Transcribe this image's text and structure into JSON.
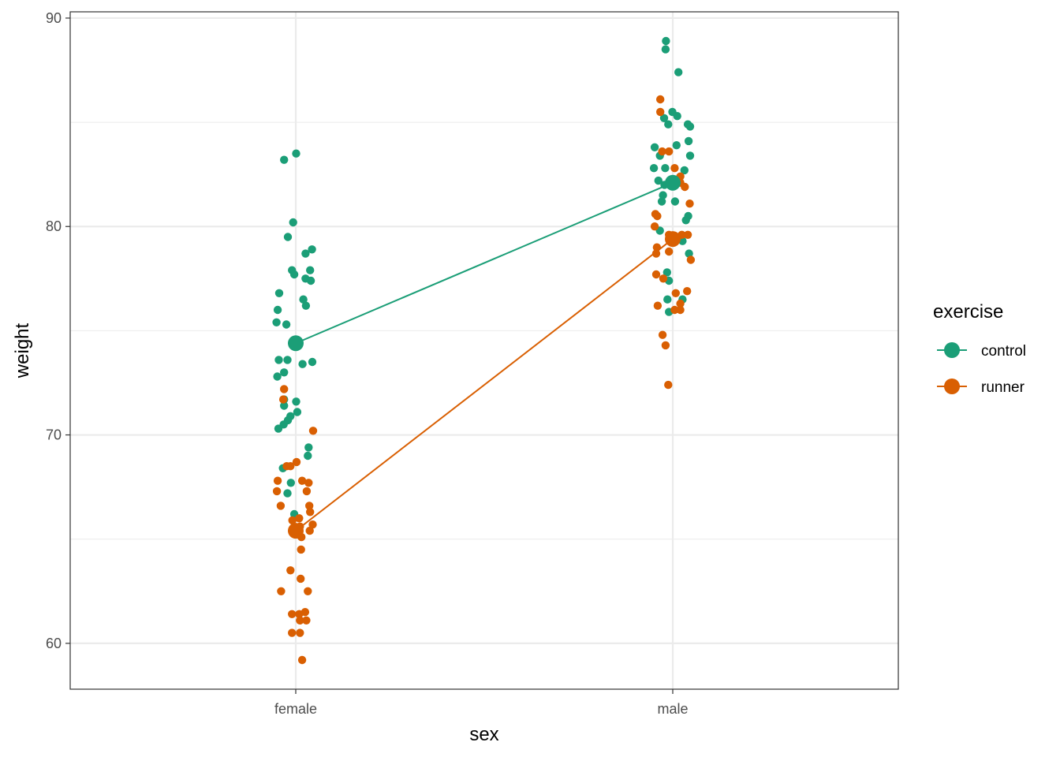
{
  "chart_data": {
    "type": "scatter",
    "xlabel": "sex",
    "ylabel": "weight",
    "categories": [
      "female",
      "male"
    ],
    "ylim": [
      57.8,
      90.3
    ],
    "y_ticks": [
      60,
      70,
      80,
      90
    ],
    "grid": true,
    "legend": {
      "title": "exercise",
      "position": "right"
    },
    "series": [
      {
        "name": "control",
        "color": "#1b9e77",
        "means": [
          74.4,
          82.1
        ],
        "points": [
          {
            "x": "female",
            "jitter": -0.031,
            "y": 83.2
          },
          {
            "x": "female",
            "jitter": 0.001,
            "y": 83.5
          },
          {
            "x": "female",
            "jitter": -0.007,
            "y": 80.2
          },
          {
            "x": "female",
            "jitter": -0.021,
            "y": 79.5
          },
          {
            "x": "female",
            "jitter": 0.026,
            "y": 78.7
          },
          {
            "x": "female",
            "jitter": 0.043,
            "y": 78.9
          },
          {
            "x": "female",
            "jitter": -0.01,
            "y": 77.9
          },
          {
            "x": "female",
            "jitter": -0.004,
            "y": 77.7
          },
          {
            "x": "female",
            "jitter": 0.026,
            "y": 77.5
          },
          {
            "x": "female",
            "jitter": 0.04,
            "y": 77.4
          },
          {
            "x": "female",
            "jitter": 0.038,
            "y": 77.9
          },
          {
            "x": "female",
            "jitter": -0.044,
            "y": 76.8
          },
          {
            "x": "female",
            "jitter": 0.02,
            "y": 76.5
          },
          {
            "x": "female",
            "jitter": 0.027,
            "y": 76.2
          },
          {
            "x": "female",
            "jitter": -0.048,
            "y": 76.0
          },
          {
            "x": "female",
            "jitter": -0.051,
            "y": 75.4
          },
          {
            "x": "female",
            "jitter": -0.025,
            "y": 75.3
          },
          {
            "x": "female",
            "jitter": -0.045,
            "y": 73.6
          },
          {
            "x": "female",
            "jitter": -0.022,
            "y": 73.6
          },
          {
            "x": "female",
            "jitter": 0.018,
            "y": 73.4
          },
          {
            "x": "female",
            "jitter": 0.044,
            "y": 73.5
          },
          {
            "x": "female",
            "jitter": -0.049,
            "y": 72.8
          },
          {
            "x": "female",
            "jitter": -0.031,
            "y": 73.0
          },
          {
            "x": "female",
            "jitter": -0.031,
            "y": 71.7
          },
          {
            "x": "female",
            "jitter": -0.031,
            "y": 71.4
          },
          {
            "x": "female",
            "jitter": 0.001,
            "y": 71.6
          },
          {
            "x": "female",
            "jitter": 0.004,
            "y": 71.1
          },
          {
            "x": "female",
            "jitter": -0.014,
            "y": 70.9
          },
          {
            "x": "female",
            "jitter": -0.021,
            "y": 70.7
          },
          {
            "x": "female",
            "jitter": -0.032,
            "y": 70.5
          },
          {
            "x": "female",
            "jitter": -0.046,
            "y": 70.3
          },
          {
            "x": "female",
            "jitter": 0.034,
            "y": 69.4
          },
          {
            "x": "female",
            "jitter": 0.032,
            "y": 69.0
          },
          {
            "x": "female",
            "jitter": -0.034,
            "y": 68.4
          },
          {
            "x": "female",
            "jitter": -0.013,
            "y": 67.7
          },
          {
            "x": "female",
            "jitter": -0.022,
            "y": 67.2
          },
          {
            "x": "female",
            "jitter": -0.004,
            "y": 66.2
          },
          {
            "x": "male",
            "jitter": -0.018,
            "y": 88.9
          },
          {
            "x": "male",
            "jitter": -0.019,
            "y": 88.5
          },
          {
            "x": "male",
            "jitter": 0.015,
            "y": 87.4
          },
          {
            "x": "male",
            "jitter": -0.001,
            "y": 85.5
          },
          {
            "x": "male",
            "jitter": 0.012,
            "y": 85.3
          },
          {
            "x": "male",
            "jitter": -0.023,
            "y": 85.2
          },
          {
            "x": "male",
            "jitter": -0.012,
            "y": 84.9
          },
          {
            "x": "male",
            "jitter": 0.04,
            "y": 84.9
          },
          {
            "x": "male",
            "jitter": 0.046,
            "y": 84.8
          },
          {
            "x": "male",
            "jitter": 0.042,
            "y": 84.1
          },
          {
            "x": "male",
            "jitter": -0.048,
            "y": 83.8
          },
          {
            "x": "male",
            "jitter": 0.01,
            "y": 83.9
          },
          {
            "x": "male",
            "jitter": 0.046,
            "y": 83.4
          },
          {
            "x": "male",
            "jitter": -0.034,
            "y": 83.4
          },
          {
            "x": "male",
            "jitter": -0.05,
            "y": 82.8
          },
          {
            "x": "male",
            "jitter": -0.02,
            "y": 82.8
          },
          {
            "x": "male",
            "jitter": 0.031,
            "y": 82.7
          },
          {
            "x": "male",
            "jitter": -0.038,
            "y": 82.2
          },
          {
            "x": "male",
            "jitter": -0.022,
            "y": 82.0
          },
          {
            "x": "male",
            "jitter": -0.026,
            "y": 81.5
          },
          {
            "x": "male",
            "jitter": -0.029,
            "y": 81.2
          },
          {
            "x": "male",
            "jitter": 0.006,
            "y": 81.2
          },
          {
            "x": "male",
            "jitter": 0.041,
            "y": 80.5
          },
          {
            "x": "male",
            "jitter": 0.035,
            "y": 80.3
          },
          {
            "x": "male",
            "jitter": -0.034,
            "y": 79.8
          },
          {
            "x": "male",
            "jitter": 0.026,
            "y": 79.3
          },
          {
            "x": "male",
            "jitter": 0.043,
            "y": 78.7
          },
          {
            "x": "male",
            "jitter": -0.015,
            "y": 77.8
          },
          {
            "x": "male",
            "jitter": -0.01,
            "y": 77.4
          },
          {
            "x": "male",
            "jitter": -0.014,
            "y": 76.5
          },
          {
            "x": "male",
            "jitter": 0.026,
            "y": 76.5
          },
          {
            "x": "male",
            "jitter": -0.01,
            "y": 75.9
          }
        ]
      },
      {
        "name": "runner",
        "color": "#d95f02",
        "means": [
          65.4,
          79.4
        ],
        "points": [
          {
            "x": "female",
            "jitter": -0.031,
            "y": 72.2
          },
          {
            "x": "female",
            "jitter": -0.033,
            "y": 71.7
          },
          {
            "x": "female",
            "jitter": 0.046,
            "y": 70.2
          },
          {
            "x": "female",
            "jitter": 0.002,
            "y": 68.7
          },
          {
            "x": "female",
            "jitter": -0.024,
            "y": 68.5
          },
          {
            "x": "female",
            "jitter": -0.014,
            "y": 68.5
          },
          {
            "x": "female",
            "jitter": 0.017,
            "y": 67.8
          },
          {
            "x": "female",
            "jitter": 0.034,
            "y": 67.7
          },
          {
            "x": "female",
            "jitter": -0.048,
            "y": 67.8
          },
          {
            "x": "female",
            "jitter": -0.05,
            "y": 67.3
          },
          {
            "x": "female",
            "jitter": 0.029,
            "y": 67.3
          },
          {
            "x": "female",
            "jitter": -0.04,
            "y": 66.6
          },
          {
            "x": "female",
            "jitter": 0.036,
            "y": 66.6
          },
          {
            "x": "female",
            "jitter": 0.038,
            "y": 66.3
          },
          {
            "x": "female",
            "jitter": 0.009,
            "y": 66.0
          },
          {
            "x": "female",
            "jitter": -0.009,
            "y": 65.9
          },
          {
            "x": "female",
            "jitter": 0.045,
            "y": 65.7
          },
          {
            "x": "female",
            "jitter": 0.011,
            "y": 65.6
          },
          {
            "x": "female",
            "jitter": 0.037,
            "y": 65.4
          },
          {
            "x": "female",
            "jitter": 0.015,
            "y": 65.1
          },
          {
            "x": "female",
            "jitter": 0.014,
            "y": 64.5
          },
          {
            "x": "female",
            "jitter": -0.014,
            "y": 63.5
          },
          {
            "x": "female",
            "jitter": 0.013,
            "y": 63.1
          },
          {
            "x": "female",
            "jitter": -0.039,
            "y": 62.5
          },
          {
            "x": "female",
            "jitter": 0.032,
            "y": 62.5
          },
          {
            "x": "female",
            "jitter": -0.01,
            "y": 61.4
          },
          {
            "x": "female",
            "jitter": 0.009,
            "y": 61.4
          },
          {
            "x": "female",
            "jitter": 0.025,
            "y": 61.5
          },
          {
            "x": "female",
            "jitter": 0.028,
            "y": 61.1
          },
          {
            "x": "female",
            "jitter": 0.011,
            "y": 61.1
          },
          {
            "x": "female",
            "jitter": -0.01,
            "y": 60.5
          },
          {
            "x": "female",
            "jitter": 0.011,
            "y": 60.5
          },
          {
            "x": "female",
            "jitter": 0.017,
            "y": 59.2
          },
          {
            "x": "male",
            "jitter": -0.033,
            "y": 85.5
          },
          {
            "x": "male",
            "jitter": -0.033,
            "y": 86.1
          },
          {
            "x": "male",
            "jitter": -0.01,
            "y": 83.6
          },
          {
            "x": "male",
            "jitter": -0.028,
            "y": 83.6
          },
          {
            "x": "male",
            "jitter": 0.005,
            "y": 82.8
          },
          {
            "x": "male",
            "jitter": 0.02,
            "y": 82.4
          },
          {
            "x": "male",
            "jitter": 0.02,
            "y": 82.1
          },
          {
            "x": "male",
            "jitter": 0.032,
            "y": 81.9
          },
          {
            "x": "male",
            "jitter": 0.045,
            "y": 81.1
          },
          {
            "x": "male",
            "jitter": -0.046,
            "y": 80.6
          },
          {
            "x": "male",
            "jitter": -0.041,
            "y": 80.5
          },
          {
            "x": "male",
            "jitter": -0.048,
            "y": 80.0
          },
          {
            "x": "male",
            "jitter": -0.01,
            "y": 79.6
          },
          {
            "x": "male",
            "jitter": 0.024,
            "y": 79.6
          },
          {
            "x": "male",
            "jitter": 0.04,
            "y": 79.6
          },
          {
            "x": "male",
            "jitter": -0.042,
            "y": 79.0
          },
          {
            "x": "male",
            "jitter": -0.044,
            "y": 78.7
          },
          {
            "x": "male",
            "jitter": -0.01,
            "y": 78.8
          },
          {
            "x": "male",
            "jitter": 0.048,
            "y": 78.4
          },
          {
            "x": "male",
            "jitter": -0.044,
            "y": 77.7
          },
          {
            "x": "male",
            "jitter": -0.025,
            "y": 77.5
          },
          {
            "x": "male",
            "jitter": 0.008,
            "y": 76.8
          },
          {
            "x": "male",
            "jitter": 0.02,
            "y": 76.3
          },
          {
            "x": "male",
            "jitter": 0.038,
            "y": 76.9
          },
          {
            "x": "male",
            "jitter": -0.04,
            "y": 76.2
          },
          {
            "x": "male",
            "jitter": 0.005,
            "y": 76.0
          },
          {
            "x": "male",
            "jitter": 0.02,
            "y": 76.0
          },
          {
            "x": "male",
            "jitter": -0.027,
            "y": 74.8
          },
          {
            "x": "male",
            "jitter": -0.019,
            "y": 74.3
          },
          {
            "x": "male",
            "jitter": -0.012,
            "y": 72.4
          }
        ]
      }
    ]
  }
}
